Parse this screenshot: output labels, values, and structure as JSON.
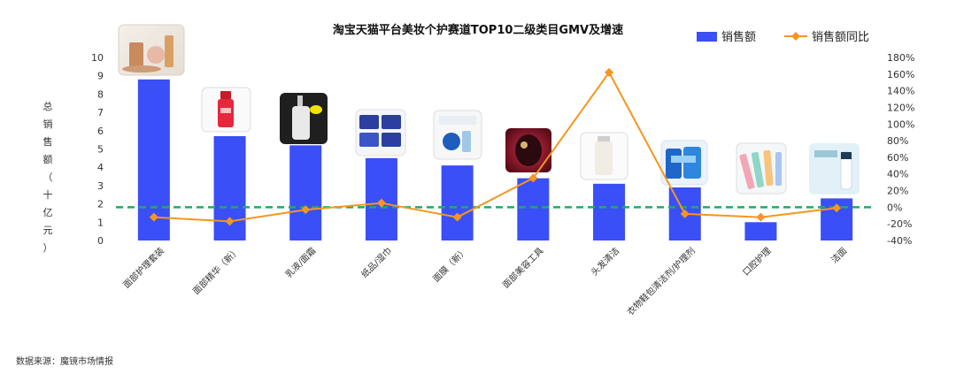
{
  "chart_data": {
    "type": "bar",
    "title": "淘宝天猫平台美妆个护赛道TOP10二级类目GMV及增速",
    "ylabel": "总销售额（十亿元）",
    "ylabel_chars": [
      "总",
      "销",
      "售",
      "额",
      "（",
      "十",
      "亿",
      "元",
      "）"
    ],
    "categories": [
      "面部护理套装",
      "面部精华（新）",
      "乳液/面霜",
      "纸品/湿巾",
      "面膜（新）",
      "面部美容工具",
      "头发清洁",
      "衣物鞋包清洁剂/护理剂",
      "口腔护理",
      "洁面"
    ],
    "series": [
      {
        "name": "销售额",
        "type": "bar",
        "axis": "left",
        "color": "#3a4ff5",
        "values": [
          8.8,
          5.7,
          5.2,
          4.5,
          4.1,
          3.4,
          3.1,
          2.9,
          1.0,
          2.3
        ]
      },
      {
        "name": "销售额同比",
        "type": "line",
        "axis": "right",
        "color": "#f5961e",
        "values": [
          -12,
          -17,
          -3,
          5,
          -12,
          35,
          162,
          -8,
          -12,
          -1
        ]
      }
    ],
    "ylim_left": [
      0,
      10
    ],
    "yticks_left": [
      "0",
      "1",
      "2",
      "3",
      "4",
      "5",
      "6",
      "7",
      "8",
      "9",
      "10"
    ],
    "ylim_right": [
      -40,
      180
    ],
    "yticks_right": [
      "-40%",
      "-20%",
      "0%",
      "20%",
      "40%",
      "60%",
      "80%",
      "100%",
      "120%",
      "140%",
      "160%",
      "180%"
    ],
    "reference_line": {
      "value": 0,
      "axis": "right",
      "style": "dashed",
      "color": "#1faa6a"
    },
    "legend": {
      "placement": "top-right",
      "entries": [
        "销售额",
        "销售额同比"
      ]
    },
    "grid": false
  },
  "source": "数据来源：魔镜市场情报"
}
